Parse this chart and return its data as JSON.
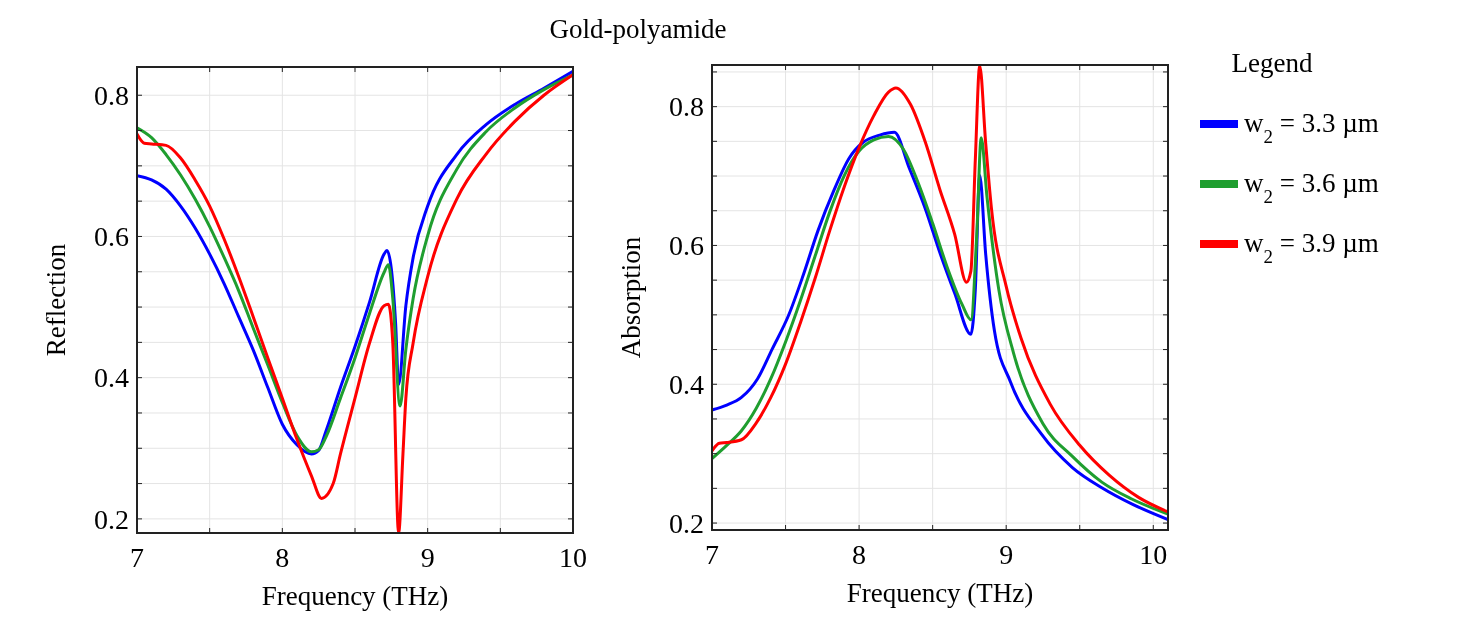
{
  "chart_data": [
    {
      "type": "line",
      "title": "Gold-polyamide",
      "xlabel": "Frequency (THz)",
      "ylabel": "Reflection",
      "xlim": [
        7,
        10
      ],
      "ylim": [
        0.18,
        0.84
      ],
      "grid": true,
      "legend": false,
      "xticks": [
        7,
        {
          "value": 7.5,
          "label": null
        },
        8,
        {
          "value": 8.5,
          "label": null
        },
        9,
        {
          "value": 9.5,
          "label": null
        },
        10
      ],
      "yticks": [
        {
          "value": 0.2,
          "label": "0.2"
        },
        {
          "value": 0.25,
          "label": null
        },
        {
          "value": 0.3,
          "label": null
        },
        {
          "value": 0.35,
          "label": null
        },
        {
          "value": 0.4,
          "label": "0.4"
        },
        {
          "value": 0.45,
          "label": null
        },
        {
          "value": 0.5,
          "label": null
        },
        {
          "value": 0.55,
          "label": null
        },
        {
          "value": 0.6,
          "label": "0.6"
        },
        {
          "value": 0.65,
          "label": null
        },
        {
          "value": 0.7,
          "label": null
        },
        {
          "value": 0.75,
          "label": null
        },
        {
          "value": 0.8,
          "label": "0.8"
        }
      ],
      "series": [
        {
          "color": "#0000ff",
          "x": [
            7,
            7.1,
            7.2,
            7.3,
            7.4,
            7.5,
            7.6,
            7.7,
            7.8,
            7.9,
            8,
            8.1,
            8.2,
            8.25,
            8.3,
            8.4,
            8.5,
            8.6,
            8.7,
            8.72,
            8.75,
            8.78,
            8.8,
            8.85,
            8.9,
            9,
            9.2,
            9.4,
            9.6,
            9.8,
            10
          ],
          "values": [
            0.686,
            0.68,
            0.667,
            0.643,
            0.612,
            0.575,
            0.533,
            0.486,
            0.439,
            0.386,
            0.334,
            0.305,
            0.292,
            0.297,
            0.324,
            0.386,
            0.444,
            0.507,
            0.575,
            0.58,
            0.554,
            0.475,
            0.39,
            0.502,
            0.57,
            0.643,
            0.716,
            0.758,
            0.787,
            0.81,
            0.834
          ]
        },
        {
          "color": "#1f9e2f",
          "x": [
            7,
            7.1,
            7.2,
            7.3,
            7.4,
            7.5,
            7.6,
            7.7,
            7.8,
            7.9,
            8,
            8.1,
            8.2,
            8.25,
            8.3,
            8.4,
            8.5,
            8.6,
            8.7,
            8.73,
            8.76,
            8.81,
            8.85,
            8.9,
            9,
            9.2,
            9.4,
            9.6,
            9.8,
            10
          ],
          "values": [
            0.754,
            0.74,
            0.716,
            0.687,
            0.653,
            0.614,
            0.57,
            0.523,
            0.47,
            0.418,
            0.365,
            0.318,
            0.295,
            0.298,
            0.316,
            0.371,
            0.428,
            0.491,
            0.549,
            0.56,
            0.512,
            0.36,
            0.44,
            0.512,
            0.601,
            0.695,
            0.748,
            0.782,
            0.808,
            0.829
          ]
        },
        {
          "color": "#ff0000",
          "x": [
            7,
            7.05,
            7.1,
            7.2,
            7.3,
            7.4,
            7.5,
            7.6,
            7.7,
            7.8,
            7.9,
            8,
            8.1,
            8.2,
            8.27,
            8.35,
            8.4,
            8.5,
            8.6,
            8.7,
            8.73,
            8.76,
            8.8,
            8.83,
            8.85,
            8.9,
            9,
            9.2,
            9.4,
            9.6,
            9.8,
            10
          ],
          "values": [
            0.745,
            0.732,
            0.731,
            0.729,
            0.711,
            0.68,
            0.643,
            0.596,
            0.543,
            0.486,
            0.428,
            0.371,
            0.313,
            0.261,
            0.229,
            0.25,
            0.292,
            0.371,
            0.449,
            0.502,
            0.504,
            0.449,
            0.18,
            0.292,
            0.371,
            0.449,
            0.543,
            0.653,
            0.716,
            0.763,
            0.8,
            0.829
          ]
        }
      ]
    },
    {
      "type": "line",
      "xlabel": "Frequency (THz)",
      "ylabel": "Absorption",
      "xlim": [
        7,
        10.1
      ],
      "ylim": [
        0.19,
        0.86
      ],
      "grid": true,
      "legend": "right",
      "legend_title": "Legend",
      "xticks": [
        7,
        {
          "value": 7.5,
          "label": null
        },
        8,
        {
          "value": 8.5,
          "label": null
        },
        9,
        {
          "value": 9.5,
          "label": null
        },
        10
      ],
      "yticks": [
        {
          "value": 0.2,
          "label": "0.2"
        },
        {
          "value": 0.25,
          "label": null
        },
        {
          "value": 0.3,
          "label": null
        },
        {
          "value": 0.35,
          "label": null
        },
        {
          "value": 0.4,
          "label": "0.4"
        },
        {
          "value": 0.45,
          "label": null
        },
        {
          "value": 0.5,
          "label": null
        },
        {
          "value": 0.55,
          "label": null
        },
        {
          "value": 0.6,
          "label": "0.6"
        },
        {
          "value": 0.65,
          "label": null
        },
        {
          "value": 0.7,
          "label": null
        },
        {
          "value": 0.75,
          "label": null
        },
        {
          "value": 0.8,
          "label": "0.8"
        },
        {
          "value": 0.85,
          "label": null
        }
      ],
      "series": [
        {
          "name": "w$_{2}$ = 3.3 µm",
          "color": "#0000ff",
          "x": [
            7,
            7.1,
            7.2,
            7.31,
            7.41,
            7.52,
            7.62,
            7.72,
            7.83,
            7.93,
            8.03,
            8.14,
            8.24,
            8.34,
            8.45,
            8.55,
            8.65,
            8.76,
            8.79,
            8.82,
            8.86,
            8.92,
            9.03,
            9.24,
            9.45,
            9.65,
            9.86,
            10.1
          ],
          "values": [
            0.363,
            0.37,
            0.381,
            0.408,
            0.451,
            0.499,
            0.557,
            0.621,
            0.68,
            0.725,
            0.749,
            0.759,
            0.763,
            0.712,
            0.653,
            0.589,
            0.531,
            0.472,
            0.536,
            0.701,
            0.589,
            0.477,
            0.403,
            0.328,
            0.28,
            0.251,
            0.227,
            0.205
          ]
        },
        {
          "name": "w$_{2}$ = 3.6 µm",
          "color": "#1f9e2f",
          "x": [
            7,
            7.1,
            7.2,
            7.3,
            7.4,
            7.5,
            7.6,
            7.7,
            7.8,
            7.9,
            8,
            8.1,
            8.2,
            8.3,
            8.4,
            8.5,
            8.6,
            8.7,
            8.76,
            8.8,
            8.83,
            8.87,
            8.95,
            9.05,
            9.25,
            9.45,
            9.65,
            9.85,
            10.1
          ],
          "values": [
            0.293,
            0.312,
            0.333,
            0.365,
            0.408,
            0.461,
            0.52,
            0.584,
            0.648,
            0.701,
            0.736,
            0.752,
            0.757,
            0.739,
            0.691,
            0.632,
            0.568,
            0.515,
            0.493,
            0.616,
            0.755,
            0.669,
            0.536,
            0.445,
            0.343,
            0.296,
            0.259,
            0.235,
            0.213
          ]
        },
        {
          "name": "w$_{2}$ = 3.9 µm",
          "color": "#ff0000",
          "x": [
            7,
            7.05,
            7.1,
            7.2,
            7.3,
            7.4,
            7.5,
            7.6,
            7.7,
            7.8,
            7.9,
            8,
            8.1,
            8.2,
            8.25,
            8.35,
            8.45,
            8.55,
            8.65,
            8.73,
            8.76,
            8.79,
            8.82,
            8.86,
            8.9,
            9,
            9.1,
            9.3,
            9.5,
            9.7,
            9.9,
            10.1
          ],
          "values": [
            0.304,
            0.315,
            0.316,
            0.32,
            0.344,
            0.381,
            0.429,
            0.488,
            0.552,
            0.621,
            0.685,
            0.741,
            0.787,
            0.821,
            0.827,
            0.803,
            0.749,
            0.68,
            0.616,
            0.547,
            0.563,
            0.723,
            0.859,
            0.749,
            0.653,
            0.541,
            0.467,
            0.371,
            0.312,
            0.269,
            0.237,
            0.216
          ]
        }
      ]
    }
  ]
}
